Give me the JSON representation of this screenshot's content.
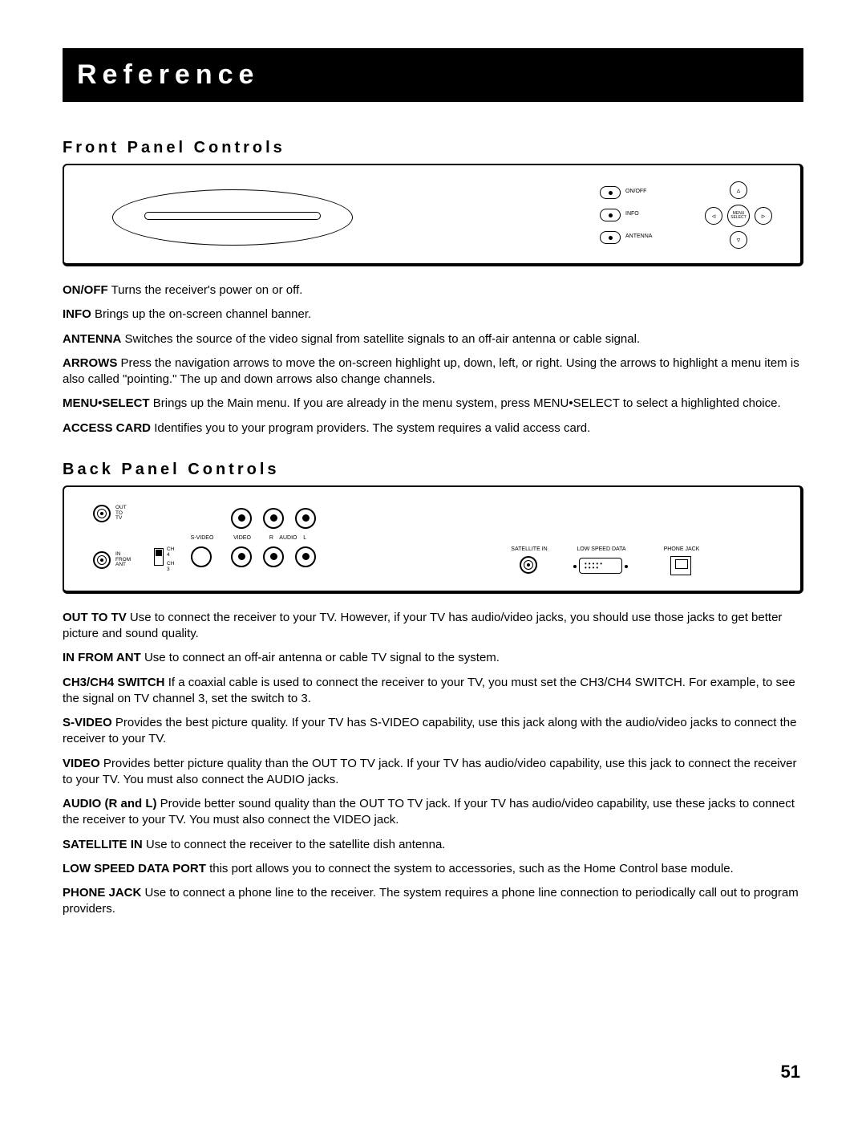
{
  "header": {
    "title": "Reference"
  },
  "front": {
    "section_title": "Front Panel Controls",
    "labels": {
      "onoff": "ON/OFF",
      "info": "INFO",
      "antenna": "ANTENNA",
      "menu": "MENU\nSELECT"
    },
    "defs": [
      {
        "term": "ON/OFF",
        "text": "Turns the receiver's power on or off."
      },
      {
        "term": "INFO",
        "text": "Brings up the on-screen channel banner."
      },
      {
        "term": "ANTENNA",
        "text": "Switches the source of the video signal from satellite signals to an off-air antenna or cable signal."
      },
      {
        "term": "ARROWS",
        "text": "Press the navigation arrows to move the on-screen highlight up, down, left, or right. Using the arrows to highlight a menu item is also called \"pointing.\" The up and down arrows also change channels."
      },
      {
        "term": "MENU•SELECT",
        "text": "Brings up the Main menu. If you are already in the menu system, press MENU•SELECT to select a highlighted choice."
      },
      {
        "term": "ACCESS CARD",
        "text": "Identifies you to your program providers. The system requires a valid access card."
      }
    ]
  },
  "back": {
    "section_title": "Back Panel Controls",
    "labels": {
      "out_to_tv": "OUT\nTO\nTV",
      "in_from_ant": "IN\nFROM\nANT",
      "ch4": "CH 4",
      "ch3": "CH 3",
      "svideo": "S-VIDEO",
      "video": "VIDEO",
      "audio_r": "R    AUDIO    L",
      "satellite_in": "SATELLITE IN",
      "low_speed_data": "LOW SPEED DATA",
      "phone_jack": "PHONE JACK"
    },
    "defs": [
      {
        "term": "OUT TO TV",
        "text": "Use to connect the receiver to your TV. However, if your TV has audio/video jacks, you should use those jacks to get better picture and sound quality."
      },
      {
        "term": "IN FROM ANT",
        "text": "Use to connect an off-air antenna or cable TV signal to the system."
      },
      {
        "term": "CH3/CH4 SWITCH",
        "text": "If a coaxial cable is used to connect the receiver to your TV, you must set the CH3/CH4 SWITCH. For example, to see the signal on TV channel 3, set the switch to 3."
      },
      {
        "term": "S-VIDEO",
        "text": "Provides the best picture quality. If your TV has S-VIDEO capability, use this jack along with the audio/video jacks to connect the receiver to your TV."
      },
      {
        "term": "VIDEO",
        "text": "Provides better picture quality than the OUT TO TV jack. If your TV has audio/video capability, use this jack to connect the receiver to your TV. You must also connect the AUDIO jacks."
      },
      {
        "term": "AUDIO (R and L)",
        "text": "Provide better sound quality than the OUT TO TV jack. If your TV has audio/video capability, use these jacks to connect the receiver to your TV. You must also connect the VIDEO jack."
      },
      {
        "term": "SATELLITE IN",
        "text": "Use to connect the receiver to the satellite dish antenna."
      },
      {
        "term": "LOW SPEED DATA PORT",
        "text": "this port allows you to connect the system to  accessories, such as the Home Control base module."
      },
      {
        "term": "PHONE JACK",
        "text": "Use to connect a phone line to the receiver. The system requires a phone line connection to periodically call out to program providers."
      }
    ]
  },
  "page_number": "51"
}
